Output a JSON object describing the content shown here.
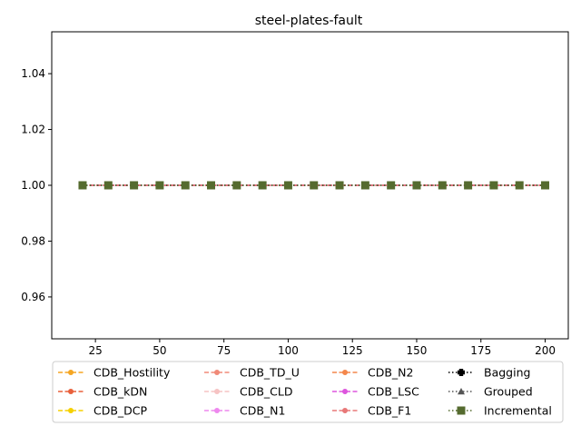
{
  "chart_data": {
    "type": "line",
    "title": "steel-plates-fault",
    "xlabel": "",
    "ylabel": "",
    "xlim": [
      8,
      209
    ],
    "ylim": [
      0.945,
      1.055
    ],
    "xticks": [
      25,
      50,
      75,
      100,
      125,
      150,
      175,
      200
    ],
    "yticks": [
      0.96,
      0.98,
      1.0,
      1.02,
      1.04
    ],
    "ytick_labels": [
      "0.96",
      "0.98",
      "1.00",
      "1.02",
      "1.04"
    ],
    "grid": false,
    "legend_position": "bottom",
    "x": [
      20,
      30,
      40,
      50,
      60,
      70,
      80,
      90,
      100,
      110,
      120,
      130,
      140,
      150,
      160,
      170,
      180,
      190,
      200
    ],
    "series": [
      {
        "name": "CDB_Hostility",
        "color": "#f5a623",
        "dash": "dashed",
        "marker": "circle",
        "values": [
          1,
          1,
          1,
          1,
          1,
          1,
          1,
          1,
          1,
          1,
          1,
          1,
          1,
          1,
          1,
          1,
          1,
          1,
          1
        ]
      },
      {
        "name": "CDB_kDN",
        "color": "#e8603c",
        "dash": "dashed",
        "marker": "circle",
        "values": [
          1,
          1,
          1,
          1,
          1,
          1,
          1,
          1,
          1,
          1,
          1,
          1,
          1,
          1,
          1,
          1,
          1,
          1,
          1
        ]
      },
      {
        "name": "CDB_DCP",
        "color": "#f5d000",
        "dash": "dashed",
        "marker": "circle",
        "values": [
          1,
          1,
          1,
          1,
          1,
          1,
          1,
          1,
          1,
          1,
          1,
          1,
          1,
          1,
          1,
          1,
          1,
          1,
          1
        ]
      },
      {
        "name": "CDB_TD_U",
        "color": "#f08a78",
        "dash": "dashed",
        "marker": "circle",
        "values": [
          1,
          1,
          1,
          1,
          1,
          1,
          1,
          1,
          1,
          1,
          1,
          1,
          1,
          1,
          1,
          1,
          1,
          1,
          1
        ]
      },
      {
        "name": "CDB_CLD",
        "color": "#f6c3c3",
        "dash": "dashed",
        "marker": "circle",
        "values": [
          1,
          1,
          1,
          1,
          1,
          1,
          1,
          1,
          1,
          1,
          1,
          1,
          1,
          1,
          1,
          1,
          1,
          1,
          1
        ]
      },
      {
        "name": "CDB_N1",
        "color": "#ee88ee",
        "dash": "dashed",
        "marker": "circle",
        "values": [
          1,
          1,
          1,
          1,
          1,
          1,
          1,
          1,
          1,
          1,
          1,
          1,
          1,
          1,
          1,
          1,
          1,
          1,
          1
        ]
      },
      {
        "name": "CDB_N2",
        "color": "#f4874b",
        "dash": "dashed",
        "marker": "circle",
        "values": [
          1,
          1,
          1,
          1,
          1,
          1,
          1,
          1,
          1,
          1,
          1,
          1,
          1,
          1,
          1,
          1,
          1,
          1,
          1
        ]
      },
      {
        "name": "CDB_LSC",
        "color": "#dd55dd",
        "dash": "dashed",
        "marker": "circle",
        "values": [
          1,
          1,
          1,
          1,
          1,
          1,
          1,
          1,
          1,
          1,
          1,
          1,
          1,
          1,
          1,
          1,
          1,
          1,
          1
        ]
      },
      {
        "name": "CDB_F1",
        "color": "#e87878",
        "dash": "dashed",
        "marker": "circle",
        "values": [
          1,
          1,
          1,
          1,
          1,
          1,
          1,
          1,
          1,
          1,
          1,
          1,
          1,
          1,
          1,
          1,
          1,
          1,
          1
        ]
      },
      {
        "name": "Bagging",
        "color": "#000000",
        "dash": "dotted",
        "marker": "plus",
        "values": [
          1,
          1,
          1,
          1,
          1,
          1,
          1,
          1,
          1,
          1,
          1,
          1,
          1,
          1,
          1,
          1,
          1,
          1,
          1
        ]
      },
      {
        "name": "Grouped",
        "color": "#555555",
        "dash": "dotted",
        "marker": "triangle",
        "values": [
          1,
          1,
          1,
          1,
          1,
          1,
          1,
          1,
          1,
          1,
          1,
          1,
          1,
          1,
          1,
          1,
          1,
          1,
          1
        ]
      },
      {
        "name": "Incremental",
        "color": "#556b2f",
        "dash": "dotted",
        "marker": "square",
        "values": [
          1,
          1,
          1,
          1,
          1,
          1,
          1,
          1,
          1,
          1,
          1,
          1,
          1,
          1,
          1,
          1,
          1,
          1,
          1
        ]
      }
    ]
  }
}
